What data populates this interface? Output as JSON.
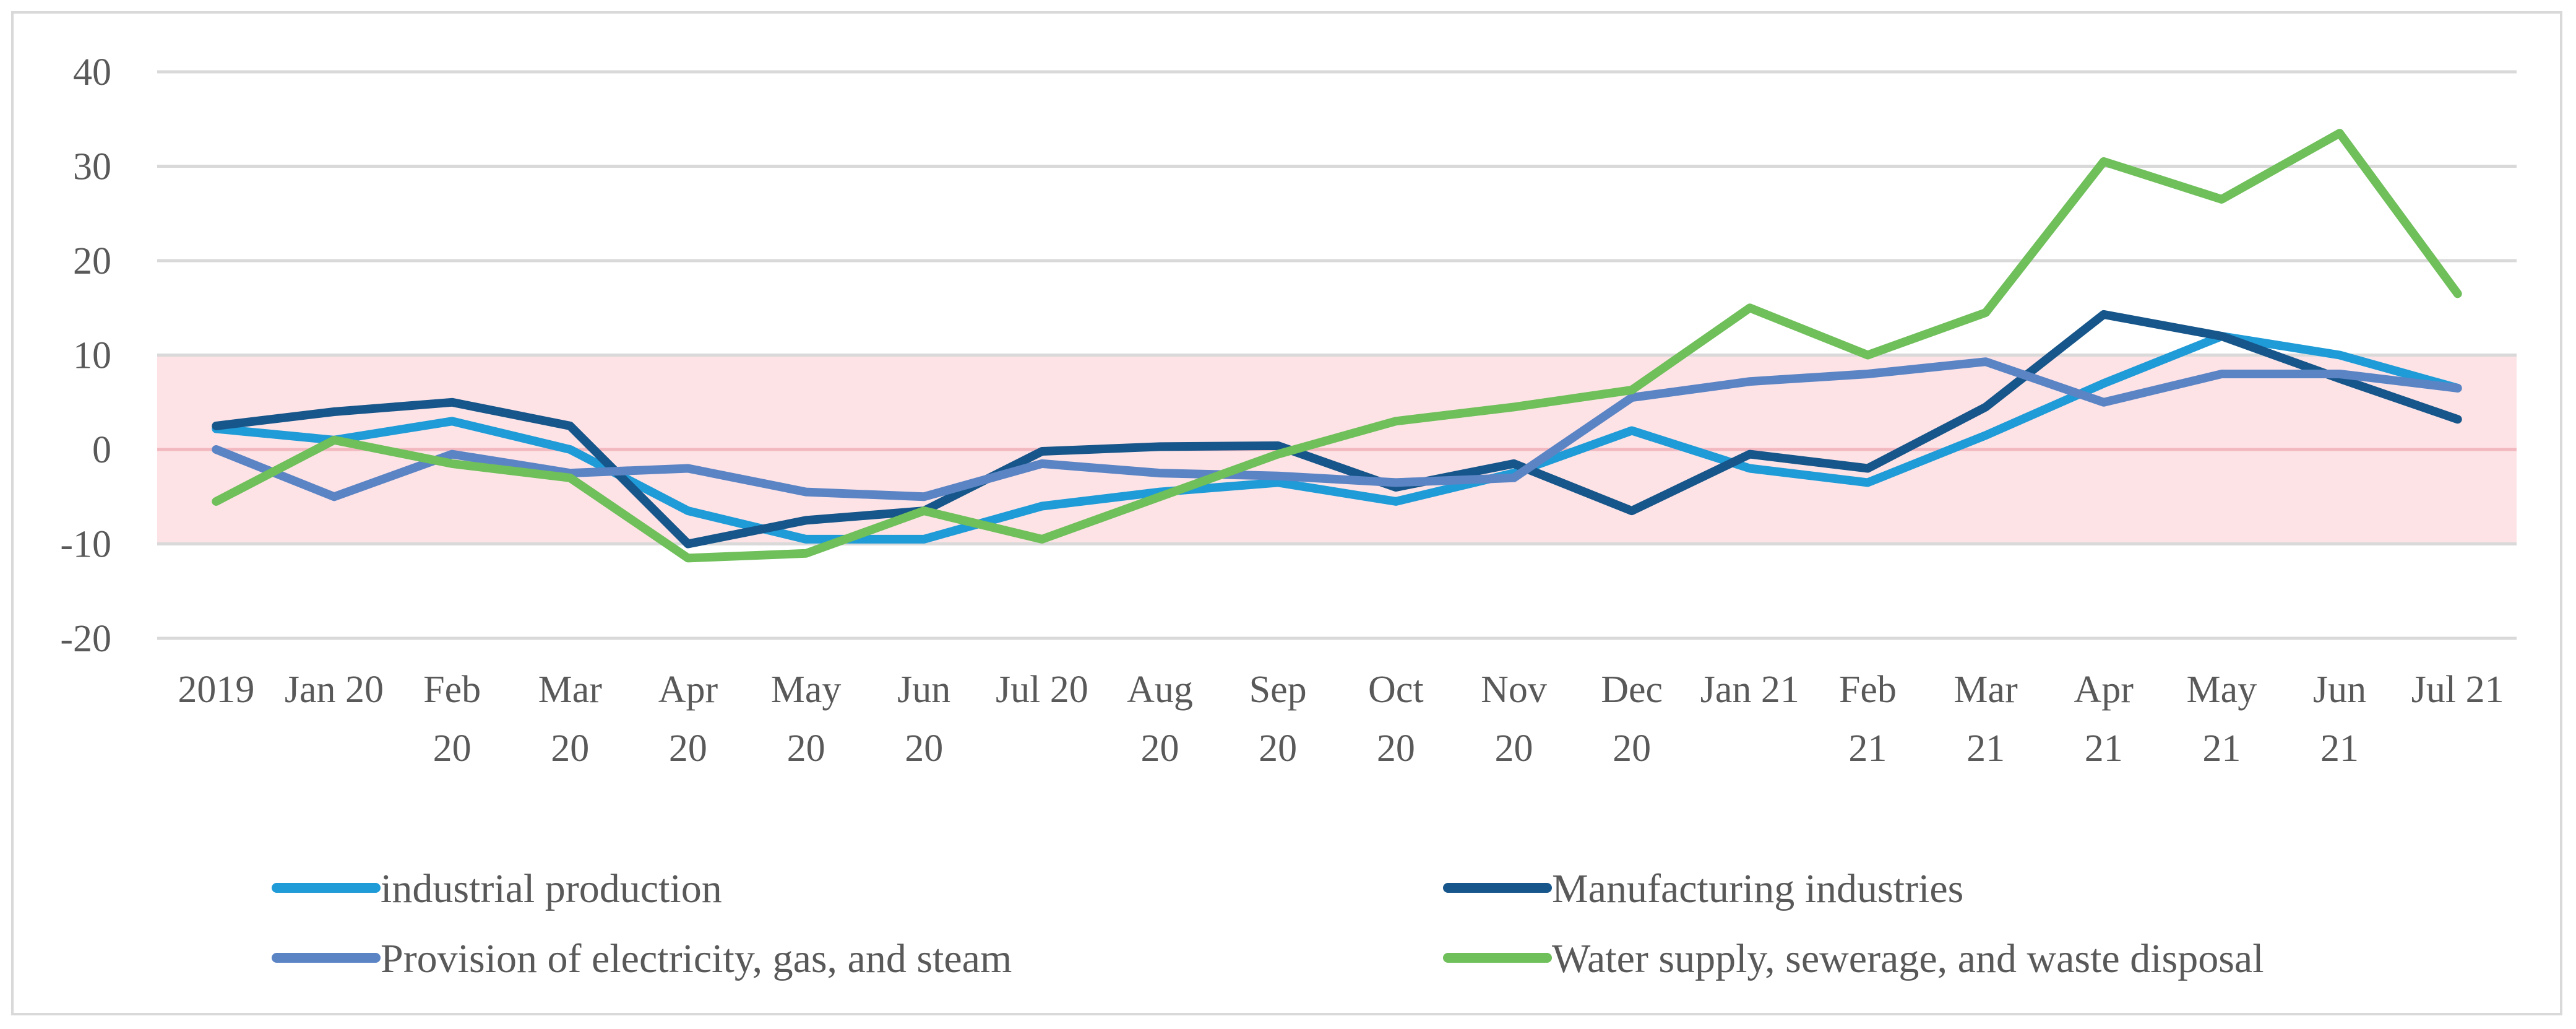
{
  "chart_data": {
    "type": "line",
    "title": "",
    "xlabel": "",
    "ylabel": "",
    "ylim": [
      -20,
      40
    ],
    "yticks": [
      -20,
      -10,
      0,
      10,
      20,
      30,
      40
    ],
    "grid": "horizontal",
    "band": {
      "from": -10,
      "to": 10,
      "color": "#fde3e6"
    },
    "categories": [
      [
        "2019"
      ],
      [
        "Jan 20"
      ],
      [
        "Feb",
        "20"
      ],
      [
        "Mar",
        "20"
      ],
      [
        "Apr",
        "20"
      ],
      [
        "May",
        "20"
      ],
      [
        "Jun",
        "20"
      ],
      [
        "Jul 20"
      ],
      [
        "Aug",
        "20"
      ],
      [
        "Sep",
        "20"
      ],
      [
        "Oct",
        "20"
      ],
      [
        "Nov",
        "20"
      ],
      [
        "Dec",
        "20"
      ],
      [
        "Jan 21"
      ],
      [
        "Feb",
        "21"
      ],
      [
        "Mar",
        "21"
      ],
      [
        "Apr",
        "21"
      ],
      [
        "May",
        "21"
      ],
      [
        "Jun",
        "21"
      ],
      [
        "Jul 21"
      ]
    ],
    "legend_position": "bottom",
    "series": [
      {
        "name": "industrial production",
        "color": "#1f9bd7",
        "values": [
          2.2,
          1.0,
          3.0,
          0.0,
          -6.5,
          -9.5,
          -9.5,
          -6.0,
          -4.5,
          -3.5,
          -5.5,
          -2.5,
          2.0,
          -2.0,
          -3.5,
          1.5,
          7.0,
          12.0,
          10.0,
          6.5
        ]
      },
      {
        "name": "Manufacturing industries",
        "color": "#17568a",
        "values": [
          2.5,
          4.0,
          5.0,
          2.5,
          -10.0,
          -7.5,
          -6.5,
          -0.2,
          0.3,
          0.4,
          -4.0,
          -1.5,
          -6.5,
          -0.5,
          -2.0,
          4.5,
          14.3,
          12.0,
          7.5,
          3.2
        ]
      },
      {
        "name": "Provision of electricity, gas, and steam",
        "color": "#5b84c5",
        "values": [
          0.0,
          -5.0,
          -0.5,
          -2.5,
          -2.0,
          -4.5,
          -5.0,
          -1.5,
          -2.5,
          -2.8,
          -3.5,
          -3.0,
          5.5,
          7.2,
          8.0,
          9.3,
          5.0,
          8.0,
          8.0,
          6.5
        ]
      },
      {
        "name": "Water supply, sewerage, and waste disposal",
        "color": "#6fbf5a",
        "values": [
          -5.5,
          1.0,
          -1.5,
          -3.0,
          -11.5,
          -11.0,
          -6.5,
          -9.5,
          -5.0,
          -0.5,
          3.0,
          4.5,
          6.3,
          15.0,
          10.0,
          14.5,
          30.5,
          26.5,
          33.5,
          16.5
        ]
      }
    ]
  }
}
